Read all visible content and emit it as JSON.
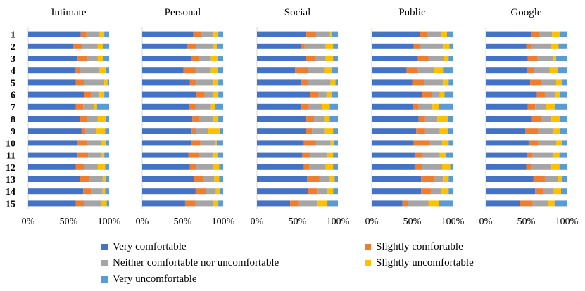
{
  "chart_data": {
    "type": "bar",
    "orientation": "horizontal-stacked-percent",
    "categories": [
      "1",
      "2",
      "3",
      "4",
      "5",
      "6",
      "7",
      "8",
      "9",
      "10",
      "11",
      "12",
      "13",
      "14",
      "15"
    ],
    "series_names": [
      "Very comfortable",
      "Slightly comfortable",
      "Neither comfortable nor uncomfortable",
      "Slightly uncomfortable",
      "Very uncomfortable"
    ],
    "series_colors": [
      "#4472c4",
      "#ed7d31",
      "#a5a5a5",
      "#ffc000",
      "#5b9bd5"
    ],
    "x_ticks": [
      "0%",
      "50%",
      "100%"
    ],
    "xlim": [
      0,
      100
    ],
    "panels": [
      {
        "title": "Intimate",
        "values": [
          [
            65,
            7,
            15,
            7,
            6
          ],
          [
            55,
            12,
            19,
            7,
            7
          ],
          [
            61,
            12,
            13,
            7,
            7
          ],
          [
            58,
            6,
            23,
            9,
            4
          ],
          [
            59,
            10,
            25,
            4,
            2
          ],
          [
            69,
            9,
            10,
            6,
            6
          ],
          [
            59,
            9,
            13,
            4,
            15
          ],
          [
            64,
            9,
            13,
            10,
            4
          ],
          [
            66,
            5,
            13,
            11,
            5
          ],
          [
            60,
            13,
            18,
            5,
            4
          ],
          [
            61,
            13,
            16,
            4,
            6
          ],
          [
            59,
            10,
            17,
            9,
            5
          ],
          [
            64,
            12,
            16,
            4,
            4
          ],
          [
            68,
            10,
            14,
            3,
            5
          ],
          [
            59,
            10,
            22,
            6,
            3
          ]
        ]
      },
      {
        "title": "Personal",
        "values": [
          [
            63,
            10,
            15,
            6,
            6
          ],
          [
            56,
            11,
            20,
            5,
            8
          ],
          [
            60,
            11,
            14,
            8,
            7
          ],
          [
            51,
            15,
            19,
            8,
            7
          ],
          [
            59,
            7,
            22,
            6,
            6
          ],
          [
            67,
            10,
            10,
            7,
            6
          ],
          [
            58,
            8,
            19,
            5,
            10
          ],
          [
            62,
            9,
            17,
            6,
            6
          ],
          [
            61,
            6,
            14,
            15,
            4
          ],
          [
            60,
            12,
            18,
            2,
            8
          ],
          [
            57,
            13,
            18,
            5,
            7
          ],
          [
            59,
            8,
            20,
            8,
            5
          ],
          [
            64,
            12,
            13,
            6,
            5
          ],
          [
            66,
            13,
            12,
            5,
            4
          ],
          [
            53,
            13,
            21,
            7,
            6
          ]
        ]
      },
      {
        "title": "Social",
        "values": [
          [
            61,
            12,
            17,
            3,
            7
          ],
          [
            54,
            5,
            26,
            9,
            6
          ],
          [
            60,
            12,
            13,
            9,
            6
          ],
          [
            47,
            16,
            20,
            10,
            7
          ],
          [
            55,
            8,
            28,
            6,
            3
          ],
          [
            66,
            10,
            10,
            7,
            7
          ],
          [
            55,
            9,
            16,
            10,
            10
          ],
          [
            61,
            9,
            13,
            7,
            10
          ],
          [
            60,
            8,
            15,
            11,
            6
          ],
          [
            58,
            15,
            18,
            4,
            5
          ],
          [
            56,
            10,
            21,
            7,
            6
          ],
          [
            58,
            7,
            20,
            9,
            6
          ],
          [
            62,
            15,
            12,
            7,
            4
          ],
          [
            63,
            12,
            12,
            7,
            6
          ],
          [
            41,
            11,
            23,
            12,
            13
          ]
        ]
      },
      {
        "title": "Public",
        "values": [
          [
            60,
            8,
            18,
            7,
            7
          ],
          [
            52,
            8,
            28,
            8,
            4
          ],
          [
            57,
            13,
            19,
            6,
            5
          ],
          [
            43,
            13,
            21,
            11,
            12
          ],
          [
            50,
            15,
            23,
            7,
            5
          ],
          [
            62,
            12,
            10,
            6,
            10
          ],
          [
            51,
            7,
            17,
            8,
            17
          ],
          [
            58,
            8,
            15,
            13,
            6
          ],
          [
            55,
            11,
            18,
            10,
            6
          ],
          [
            52,
            19,
            16,
            8,
            5
          ],
          [
            53,
            10,
            21,
            8,
            8
          ],
          [
            53,
            9,
            25,
            10,
            3
          ],
          [
            61,
            17,
            10,
            7,
            5
          ],
          [
            61,
            12,
            13,
            9,
            5
          ],
          [
            38,
            7,
            25,
            13,
            17
          ]
        ]
      },
      {
        "title": "Google",
        "values": [
          [
            56,
            10,
            16,
            10,
            8
          ],
          [
            50,
            6,
            24,
            10,
            10
          ],
          [
            52,
            12,
            19,
            4,
            13
          ],
          [
            51,
            9,
            19,
            10,
            11
          ],
          [
            55,
            13,
            19,
            7,
            6
          ],
          [
            63,
            10,
            13,
            6,
            8
          ],
          [
            52,
            9,
            13,
            11,
            15
          ],
          [
            57,
            11,
            13,
            11,
            8
          ],
          [
            49,
            16,
            18,
            9,
            8
          ],
          [
            53,
            12,
            22,
            7,
            6
          ],
          [
            51,
            7,
            25,
            8,
            9
          ],
          [
            50,
            6,
            25,
            10,
            9
          ],
          [
            59,
            14,
            16,
            5,
            6
          ],
          [
            61,
            11,
            12,
            9,
            7
          ],
          [
            42,
            16,
            19,
            8,
            15
          ]
        ]
      }
    ]
  }
}
